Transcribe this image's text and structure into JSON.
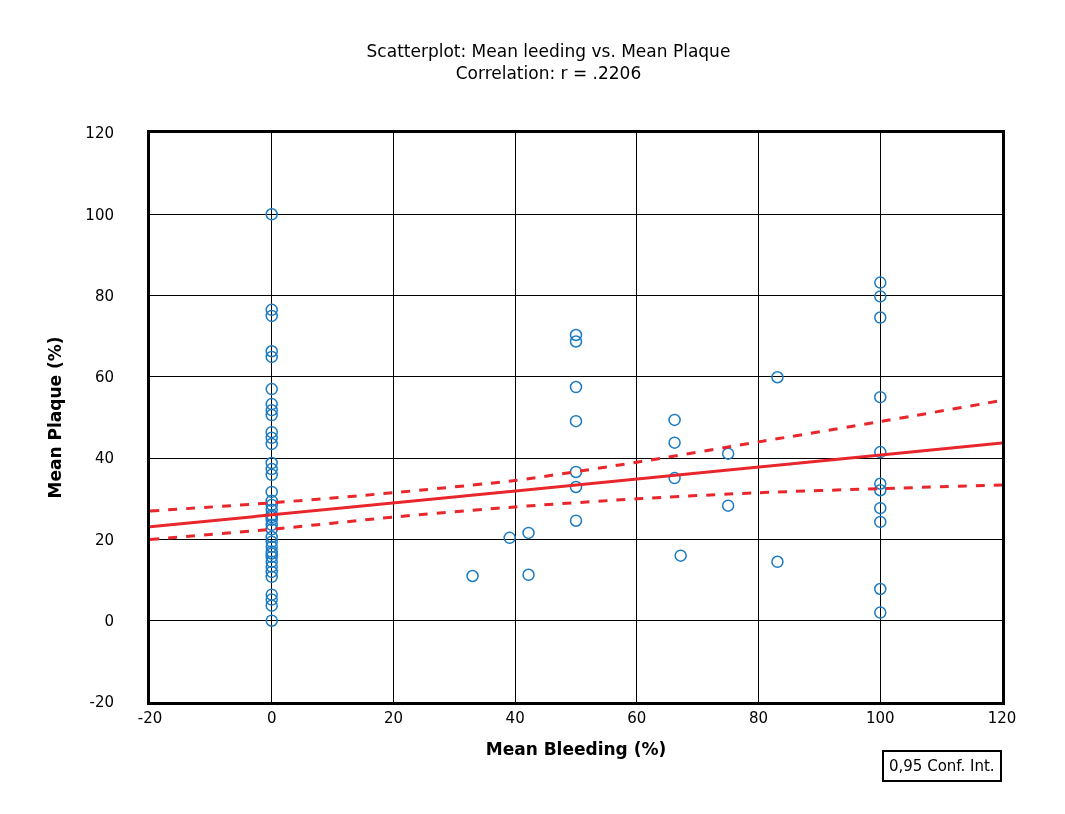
{
  "chart_data": {
    "type": "scatter",
    "title": "Scatterplot: Mean leeding vs. Mean Plaque",
    "subtitle": "Correlation: r = .2206",
    "xlabel": "Mean Bleeding (%)",
    "ylabel": "Mean Plaque (%)",
    "annotations": [
      "0,95 Conf. Int."
    ],
    "xlim": [
      -20,
      120
    ],
    "xticks": [
      -20,
      0,
      20,
      40,
      60,
      80,
      100,
      120
    ],
    "ylim": [
      -20,
      120
    ],
    "yticks": [
      -20,
      0,
      20,
      40,
      60,
      80,
      100,
      120
    ],
    "grid": true,
    "series": [
      {
        "marker": "circle",
        "color": "#1a7bc4",
        "x": [
          0,
          0,
          0,
          0,
          0,
          0,
          0,
          0,
          0,
          0,
          0,
          0,
          0,
          0,
          0,
          0,
          0,
          0,
          0,
          0,
          0,
          0,
          0,
          0,
          0,
          0,
          0,
          0,
          0,
          0,
          0,
          0,
          0,
          0,
          0,
          0,
          0,
          0,
          33,
          39.1,
          42.2,
          42.2,
          50,
          50,
          50,
          50,
          50,
          50,
          50,
          66.2,
          66.2,
          66.2,
          67.2,
          75,
          75,
          83.1,
          83.1,
          100,
          100,
          100,
          100,
          100,
          100,
          100,
          100,
          100,
          100,
          100
        ],
        "values": [
          100,
          76.5,
          75,
          66.3,
          64.9,
          57,
          53.3,
          51.8,
          50.6,
          46.4,
          45,
          43.5,
          38.8,
          37.3,
          35.9,
          31.7,
          28.5,
          27.3,
          26,
          24.8,
          23.6,
          20.6,
          19.4,
          18.2,
          17,
          15.7,
          14.5,
          13.3,
          12,
          10.8,
          6.4,
          5.2,
          3.7,
          0,
          22.5,
          25.5,
          29.5,
          16.5,
          11,
          20.4,
          21.6,
          11.3,
          70.3,
          68.7,
          57.5,
          49.1,
          36.6,
          32.9,
          24.6,
          49.4,
          43.8,
          35.1,
          16,
          41.1,
          28.3,
          59.9,
          14.5,
          83.2,
          79.8,
          74.6,
          55,
          41.5,
          33.7,
          32.1,
          27.7,
          24.3,
          7.8,
          2
        ]
      },
      {
        "type": "line",
        "line_style": "solid",
        "color": "#e8262b",
        "x": [
          -20,
          120
        ],
        "values": [
          23.1,
          43.7
        ]
      },
      {
        "type": "line",
        "line_style": "dashed",
        "color": "#e8262b",
        "x": [
          -20,
          0,
          20,
          40,
          60,
          80,
          100,
          120
        ],
        "values": [
          27,
          29,
          31.5,
          34.5,
          39,
          44,
          49,
          54.2
        ]
      },
      {
        "type": "line",
        "line_style": "dashed",
        "color": "#e8262b",
        "x": [
          -20,
          0,
          20,
          40,
          60,
          80,
          100,
          120
        ],
        "values": [
          20,
          22.5,
          25.5,
          28,
          30,
          31.5,
          32.5,
          33.4
        ]
      }
    ]
  }
}
